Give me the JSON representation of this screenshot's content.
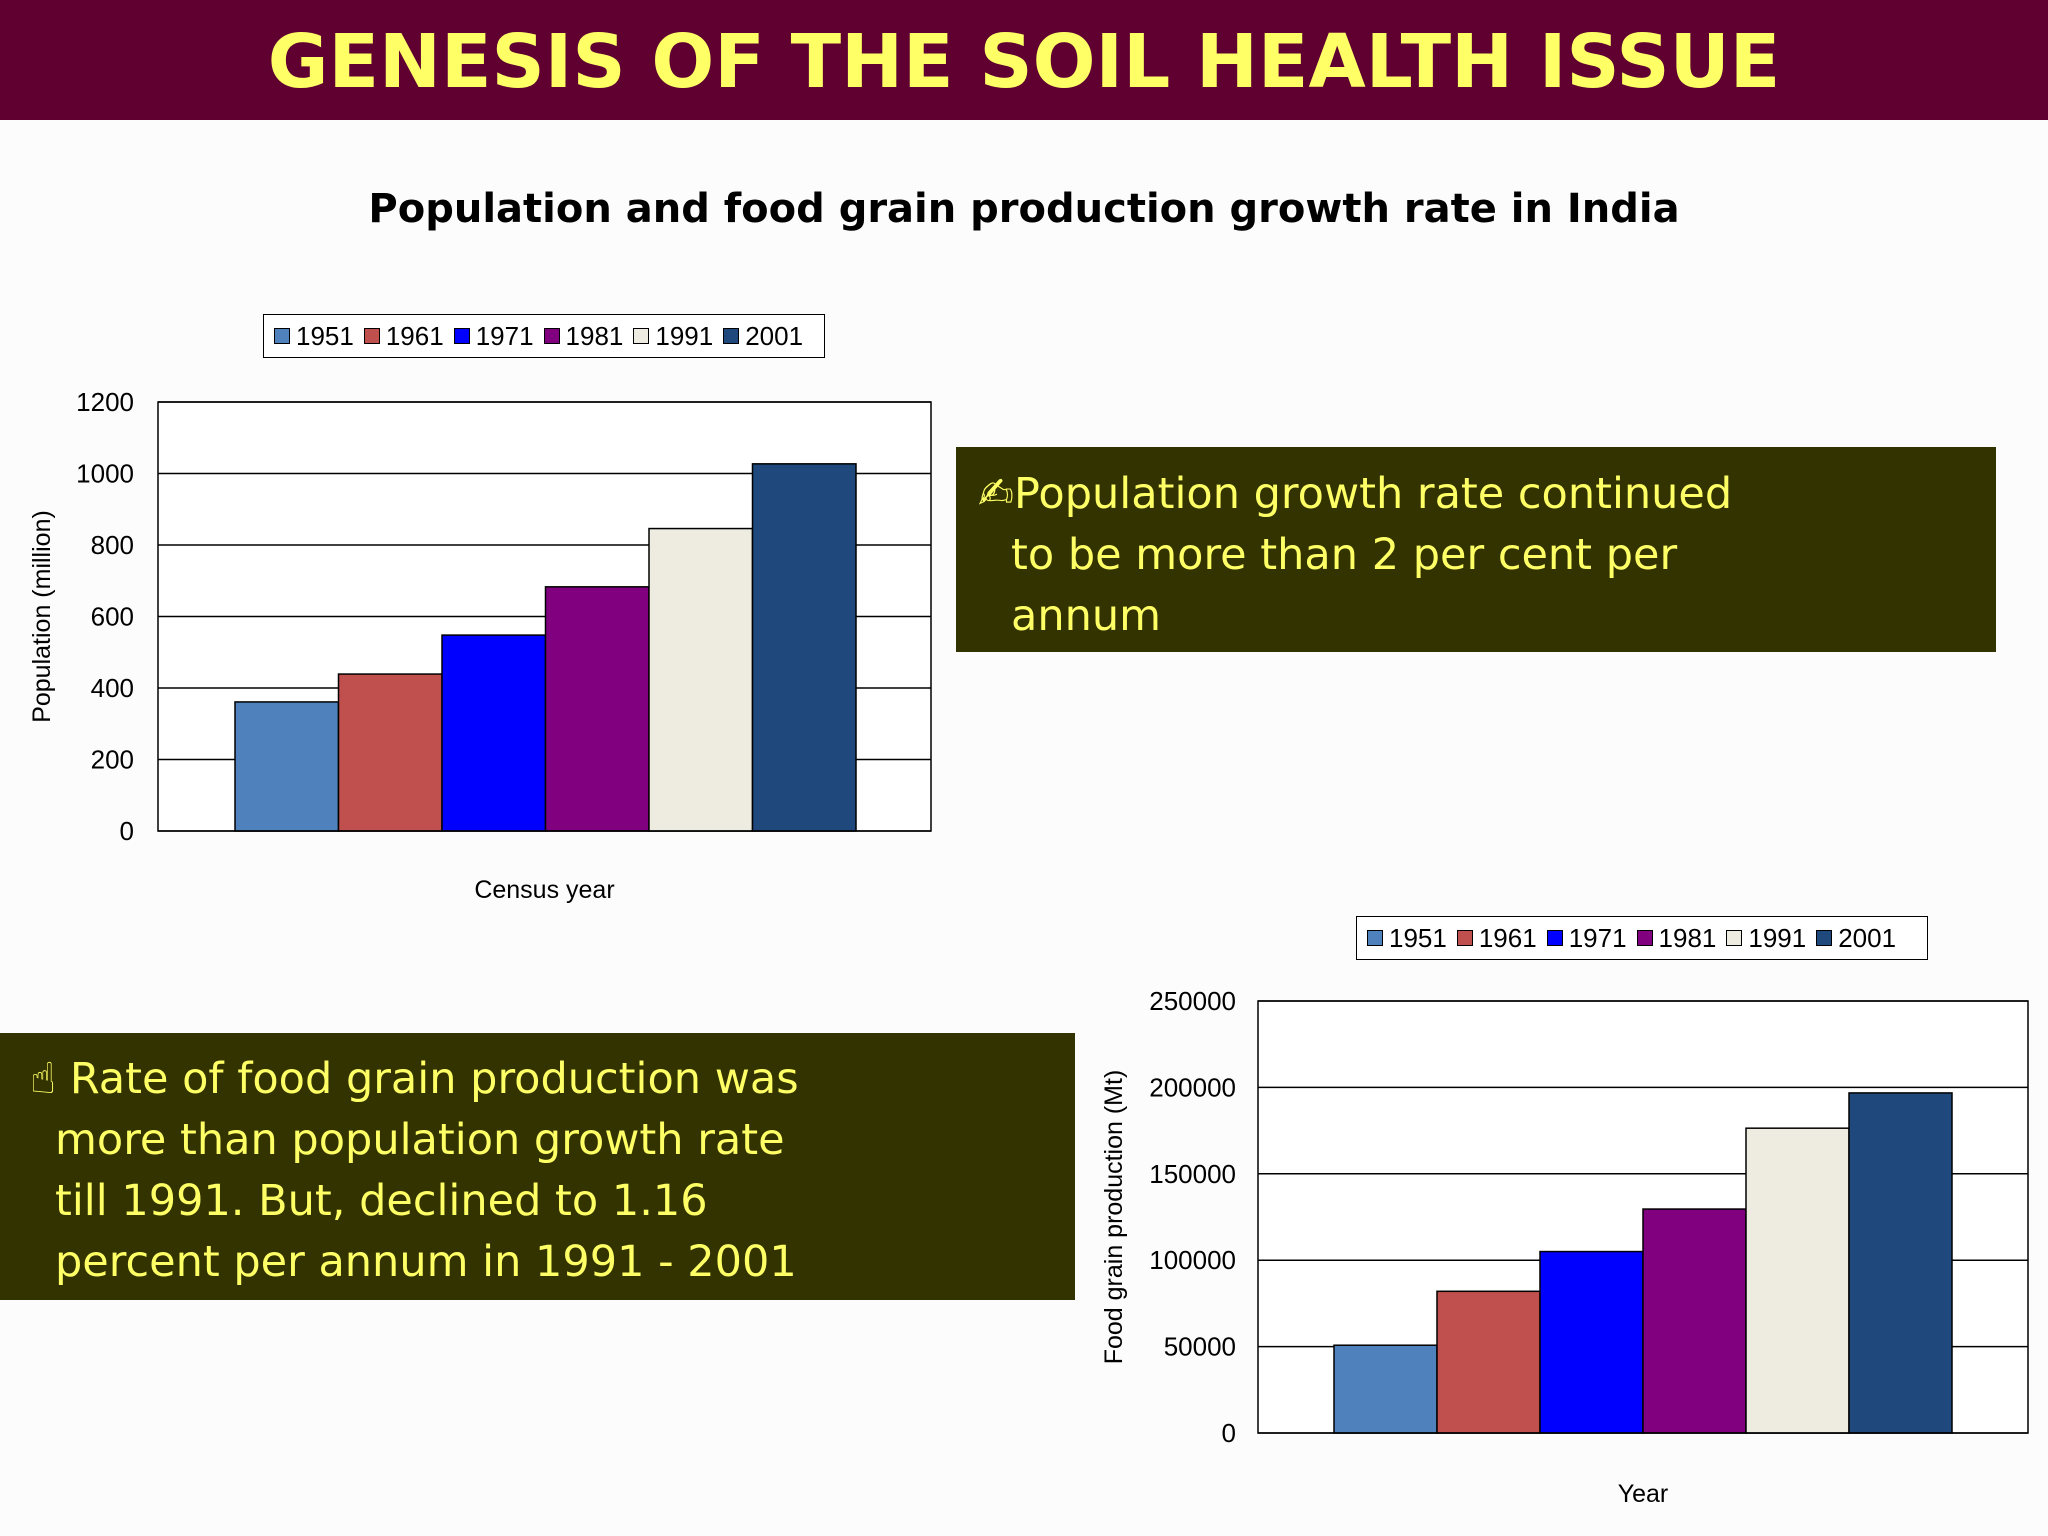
{
  "slide": {
    "title": "GENESIS OF THE SOIL HEALTH ISSUE",
    "subtitle": "Population and food grain production growth rate in India",
    "colors": {
      "title_bg": "#600030",
      "title_text": "#ffff66",
      "callout_bg": "#333300",
      "callout_text": "#ffff66"
    }
  },
  "callouts": {
    "population": {
      "icon": "writing-hand-icon",
      "icon_glyph": "✍",
      "lines": [
        "Population growth rate continued",
        "to be more than 2 per cent per",
        "annum"
      ]
    },
    "food": {
      "icon": "pointing-finger-icon",
      "icon_glyph": "☝",
      "lines": [
        "Rate of food grain production was",
        "more than population growth rate",
        "till 1991. But, declined to 1.16",
        "percent per annum in 1991 - 2001"
      ]
    }
  },
  "chart_data": [
    {
      "type": "bar",
      "title": "",
      "xlabel": "Census year",
      "ylabel": "Population (million)",
      "ylim": [
        0,
        1200
      ],
      "yticks": [
        "0",
        "200",
        "400",
        "600",
        "800",
        "1000",
        "1200"
      ],
      "grid": true,
      "legend": "top",
      "series": [
        {
          "name": "1951",
          "values": [
            361
          ],
          "color": "#4f81bd"
        },
        {
          "name": "1961",
          "values": [
            439
          ],
          "color": "#c0504d"
        },
        {
          "name": "1971",
          "values": [
            548
          ],
          "color": "#0000ff"
        },
        {
          "name": "1981",
          "values": [
            683
          ],
          "color": "#800080"
        },
        {
          "name": "1991",
          "values": [
            846
          ],
          "color": "#eeece1"
        },
        {
          "name": "2001",
          "values": [
            1027
          ],
          "color": "#1f497d"
        }
      ]
    },
    {
      "type": "bar",
      "title": "",
      "xlabel": "Year",
      "ylabel": "Food grain production (Mt)",
      "ylim": [
        0,
        250000
      ],
      "yticks": [
        "0",
        "50000",
        "100000",
        "150000",
        "200000",
        "250000"
      ],
      "grid": true,
      "legend": "top",
      "series": [
        {
          "name": "1951",
          "values": [
            50800
          ],
          "color": "#4f81bd"
        },
        {
          "name": "1961",
          "values": [
            82000
          ],
          "color": "#c0504d"
        },
        {
          "name": "1971",
          "values": [
            105000
          ],
          "color": "#0000ff"
        },
        {
          "name": "1981",
          "values": [
            129600
          ],
          "color": "#800080"
        },
        {
          "name": "1991",
          "values": [
            176400
          ],
          "color": "#eeece1"
        },
        {
          "name": "2001",
          "values": [
            196800
          ],
          "color": "#1f497d"
        }
      ]
    }
  ]
}
